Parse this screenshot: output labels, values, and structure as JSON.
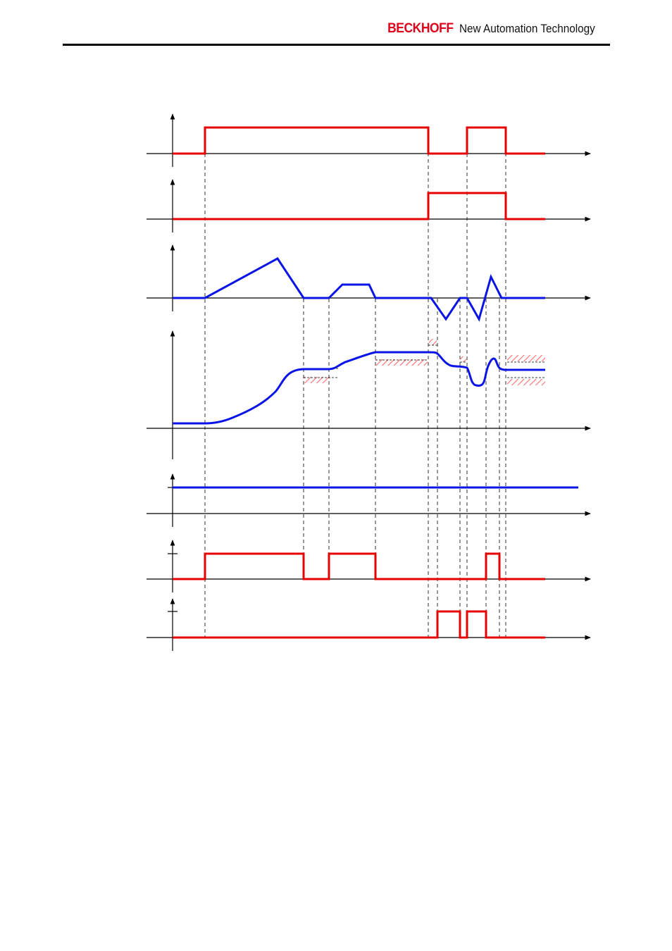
{
  "header": {
    "brand_logo": "BECKHOFF",
    "brand_tagline": "New Automation Technology"
  },
  "colors": {
    "logo": "#e0001b",
    "digital_signal": "#e60000",
    "analog_signal": "#0a14e6",
    "hatch": "#ff6b6b",
    "axis": "#000000"
  },
  "icons": [
    "axis-arrow-icon",
    "hatch-tolerance-band"
  ]
}
